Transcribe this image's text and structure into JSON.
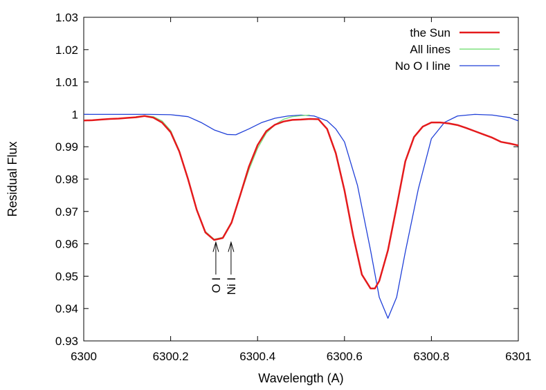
{
  "chart_data": {
    "type": "line",
    "title": "",
    "xlabel": "Wavelength (A)",
    "ylabel": "Residual Flux",
    "xlim": [
      6300,
      6301
    ],
    "ylim": [
      0.93,
      1.03
    ],
    "x_ticks": [
      "6300",
      "6300.2",
      "6300.4",
      "6300.6",
      "6300.8",
      "6301"
    ],
    "x_tick_values": [
      6300,
      6300.2,
      6300.4,
      6300.6,
      6300.8,
      6301
    ],
    "y_ticks": [
      "0.93",
      "0.94",
      "0.95",
      "0.96",
      "0.97",
      "0.98",
      "0.99",
      "1",
      "1.01",
      "1.02",
      "1.03"
    ],
    "y_tick_values": [
      0.93,
      0.94,
      0.95,
      0.96,
      0.97,
      0.98,
      0.99,
      1.0,
      1.01,
      1.02,
      1.03
    ],
    "grid": false,
    "legend_position": "top-right",
    "series": [
      {
        "name": "the Sun",
        "color": "#e41a1c",
        "x": [
          6300.0,
          6300.02,
          6300.04,
          6300.06,
          6300.08,
          6300.1,
          6300.12,
          6300.14,
          6300.16,
          6300.18,
          6300.2,
          6300.22,
          6300.24,
          6300.26,
          6300.28,
          6300.3,
          6300.32,
          6300.34,
          6300.36,
          6300.38,
          6300.4,
          6300.42,
          6300.44,
          6300.46,
          6300.48,
          6300.5,
          6300.52,
          6300.54,
          6300.56,
          6300.58,
          6300.6,
          6300.62,
          6300.64,
          6300.66,
          6300.67,
          6300.68,
          6300.7,
          6300.72,
          6300.74,
          6300.76,
          6300.78,
          6300.8,
          6300.82,
          6300.84,
          6300.86,
          6300.88,
          6300.9,
          6300.92,
          6300.94,
          6300.96,
          6300.98,
          6301.0
        ],
        "y": [
          0.9981,
          0.9982,
          0.9984,
          0.9986,
          0.9987,
          0.9989,
          0.9991,
          0.9995,
          0.999,
          0.9975,
          0.9945,
          0.9885,
          0.98,
          0.9705,
          0.9635,
          0.9612,
          0.9618,
          0.9665,
          0.975,
          0.9838,
          0.9905,
          0.9948,
          0.9968,
          0.9978,
          0.9983,
          0.9984,
          0.9986,
          0.9985,
          0.9955,
          0.988,
          0.9765,
          0.9625,
          0.9505,
          0.9462,
          0.9462,
          0.9485,
          0.958,
          0.9715,
          0.9855,
          0.993,
          0.9962,
          0.9975,
          0.9975,
          0.9972,
          0.9967,
          0.9958,
          0.9948,
          0.9938,
          0.9928,
          0.9915,
          0.991,
          0.9904
        ]
      },
      {
        "name": "All lines",
        "color": "#7fe07f",
        "x": [
          6300.12,
          6300.14,
          6300.16,
          6300.18,
          6300.2,
          6300.22,
          6300.24,
          6300.26,
          6300.28,
          6300.3,
          6300.32,
          6300.34,
          6300.36,
          6300.38,
          6300.4,
          6300.42,
          6300.44,
          6300.46,
          6300.48,
          6300.5,
          6300.52
        ],
        "y": [
          0.9993,
          0.9996,
          0.9993,
          0.998,
          0.995,
          0.9888,
          0.98,
          0.9705,
          0.9638,
          0.9614,
          0.962,
          0.9668,
          0.9748,
          0.9828,
          0.9895,
          0.9942,
          0.9968,
          0.9985,
          0.9993,
          0.9996,
          0.9998
        ]
      },
      {
        "name": "No O I line",
        "color": "#1f3fd8",
        "x": [
          6300.0,
          6300.05,
          6300.1,
          6300.15,
          6300.2,
          6300.24,
          6300.27,
          6300.3,
          6300.33,
          6300.35,
          6300.38,
          6300.41,
          6300.44,
          6300.47,
          6300.5,
          6300.53,
          6300.56,
          6300.58,
          6300.6,
          6300.63,
          6300.66,
          6300.68,
          6300.7,
          6300.72,
          6300.74,
          6300.77,
          6300.8,
          6300.83,
          6300.86,
          6300.9,
          6300.94,
          6300.98,
          6301.0
        ],
        "y": [
          1.0,
          1.0,
          1.0,
          1.0,
          0.9999,
          0.9993,
          0.9975,
          0.9952,
          0.9938,
          0.9937,
          0.9955,
          0.9975,
          0.9988,
          0.9995,
          0.9998,
          0.9995,
          0.998,
          0.9955,
          0.9915,
          0.978,
          0.958,
          0.9435,
          0.937,
          0.9435,
          0.9575,
          0.977,
          0.9925,
          0.9975,
          0.9995,
          1.0,
          0.9998,
          0.999,
          0.998
        ]
      }
    ],
    "annotations": [
      {
        "text": "O I",
        "x": 6300.304,
        "y": 0.9605,
        "arrow_from_y": 0.9505
      },
      {
        "text": "Ni I",
        "x": 6300.339,
        "y": 0.9605,
        "arrow_from_y": 0.9505
      }
    ]
  }
}
